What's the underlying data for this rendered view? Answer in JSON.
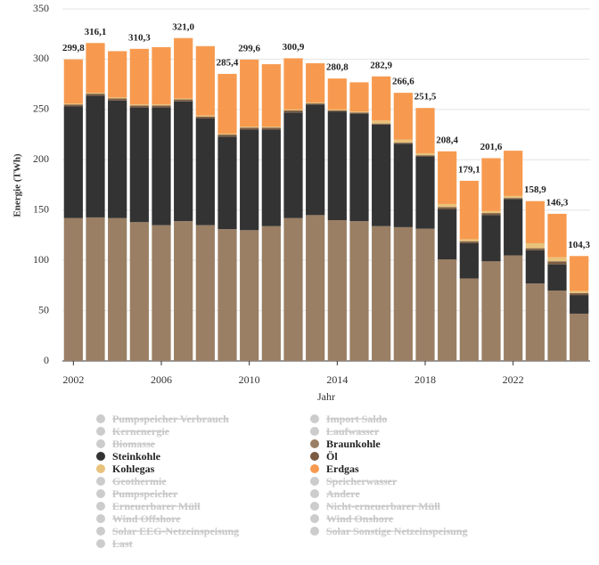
{
  "chart_data": {
    "type": "stacked-bar",
    "x_label": "Jahr",
    "y_label": "Energie (TWh)",
    "x": [
      2002,
      2003,
      2004,
      2005,
      2006,
      2007,
      2008,
      2009,
      2010,
      2011,
      2012,
      2013,
      2014,
      2015,
      2016,
      2017,
      2018,
      2019,
      2020,
      2021,
      2022,
      2023,
      2024,
      2025
    ],
    "xlim": [
      2001.5,
      2025.5
    ],
    "xticks": [
      2002,
      2006,
      2010,
      2014,
      2018,
      2022
    ],
    "ylim": [
      0,
      350
    ],
    "yticks": [
      0,
      50,
      100,
      150,
      200,
      250,
      300,
      350
    ],
    "grid": true,
    "series": [
      {
        "name": "Pumpspeicher Verbrauch",
        "visible": false
      },
      {
        "name": "Import Saldo",
        "visible": false
      },
      {
        "name": "Kernenergie",
        "visible": false
      },
      {
        "name": "Laufwasser",
        "visible": false
      },
      {
        "name": "Biomasse",
        "visible": false
      },
      {
        "name": "Braunkohle",
        "color": "#9a7f64",
        "values": [
          142,
          142.7,
          142,
          138,
          135,
          139,
          135,
          131,
          130,
          134,
          142,
          145,
          140,
          139,
          134,
          133,
          131.5,
          101,
          82,
          99,
          105,
          77,
          70,
          47
        ]
      },
      {
        "name": "Steinkohle",
        "color": "#333333",
        "values": [
          111,
          121,
          117,
          114,
          117,
          119,
          106,
          92,
          100,
          96,
          105,
          110,
          108,
          107,
          101,
          83,
          72,
          50,
          35,
          46,
          56,
          33,
          26,
          18.5
        ]
      },
      {
        "name": "Öl",
        "color": "#7b5c43",
        "values": [
          2,
          2,
          2,
          2,
          2,
          2,
          2,
          2,
          2,
          2,
          2,
          1,
          1,
          1,
          1,
          1,
          1,
          2,
          2,
          2,
          1,
          2,
          3,
          2
        ]
      },
      {
        "name": "Kohlegas",
        "color": "#e8c27b",
        "values": [
          1,
          1,
          1,
          1,
          1,
          1,
          1,
          1,
          1,
          1,
          1,
          1,
          1,
          1,
          3,
          3,
          2,
          3,
          2,
          2,
          2,
          5,
          4,
          2
        ]
      },
      {
        "name": "Erdgas",
        "color": "#f79a4f",
        "values": [
          43.8,
          49.4,
          46,
          55.3,
          57,
          60,
          69,
          59.4,
          66.6,
          62,
          50.9,
          39,
          30.8,
          29,
          43.9,
          46.6,
          45,
          52.4,
          58.1,
          52.6,
          45,
          41.9,
          43.3,
          34.8
        ]
      },
      {
        "name": "Geothermie",
        "visible": false
      },
      {
        "name": "Speicherwasser",
        "visible": false
      },
      {
        "name": "Pumpspeicher",
        "visible": false
      },
      {
        "name": "Andere",
        "visible": false
      },
      {
        "name": "Erneuerbarer Müll",
        "visible": false
      },
      {
        "name": "Nicht-erneuerbarer Müll",
        "visible": false
      },
      {
        "name": "Wind Offshore",
        "visible": false
      },
      {
        "name": "Wind Onshore",
        "visible": false
      },
      {
        "name": "Solar EEG-Netzeinspeisung",
        "visible": false
      },
      {
        "name": "Solar Sonstige Netzeinspeisung",
        "visible": false
      },
      {
        "name": "Last",
        "visible": false
      }
    ],
    "totals": {
      "values": [
        299.8,
        316.1,
        null,
        310.3,
        null,
        321.0,
        null,
        285.4,
        299.6,
        null,
        300.9,
        null,
        280.8,
        null,
        282.9,
        266.6,
        251.5,
        208.4,
        179.1,
        201.6,
        null,
        158.9,
        146.3,
        104.3
      ],
      "value_labels": [
        "299,8",
        "316,1",
        null,
        "310,3",
        null,
        "321,0",
        null,
        "285,4",
        "299,6",
        null,
        "300,9",
        null,
        "280,8",
        null,
        "282,9",
        "266,6",
        "251,5",
        "208,4",
        "179,1",
        "201,6",
        null,
        "158,9",
        "146,3",
        "104,3"
      ]
    }
  }
}
